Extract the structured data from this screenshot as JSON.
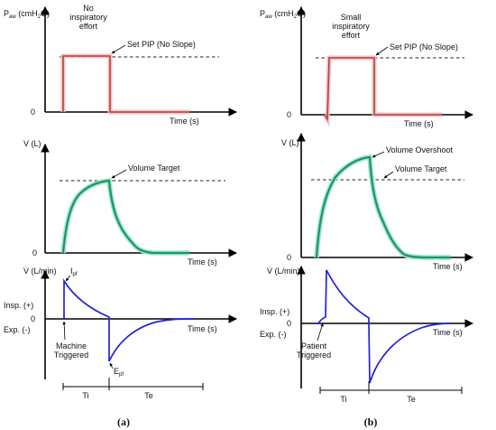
{
  "panel_a": {
    "pressure": {
      "ylabel": "Paw (cmH2O)",
      "ylabel_main": "P",
      "ylabel_sub": "aw",
      "ylabel_unit": " (cmH",
      "ylabel_unit_sub": "2",
      "ylabel_unit_end": "O)",
      "note_line1": "No",
      "note_line2": "inspiratory",
      "note_line3": "effort",
      "pip_label": "Set PIP (No Slope)",
      "zero": "0",
      "xlabel": "Time (s)"
    },
    "volume": {
      "ylabel": "V (L)",
      "target_label": "Volume Target",
      "zero": "0",
      "xlabel": "Time (s)"
    },
    "flow": {
      "ylabel": "V̇ (L/min)",
      "insp": "Insp. (+)",
      "exp": "Exp. (-)",
      "zero": "0",
      "xlabel": "Time (s)",
      "ipf_main": "I",
      "ipf_sub": "pf",
      "epf_main": "E",
      "epf_sub": "pf",
      "trigger_line1": "Machine",
      "trigger_line2": "Triggered",
      "ti": "Ti",
      "te": "Te"
    },
    "caption": "(a)"
  },
  "panel_b": {
    "pressure": {
      "ylabel": "Paw (cmH2O)",
      "ylabel_main": "P",
      "ylabel_sub": "aw",
      "ylabel_unit": " (cmH",
      "ylabel_unit_sub": "2",
      "ylabel_unit_end": "O)",
      "note_line1": "Small",
      "note_line2": "inspiratory",
      "note_line3": "effort",
      "pip_label": "Set PIP (No Slope)",
      "zero": "0",
      "xlabel": "Time (s)"
    },
    "volume": {
      "ylabel": "V (L)",
      "overshoot_label": "Volume Overshoot",
      "target_label": "Volume Target",
      "zero": "0",
      "xlabel": "Time (s)"
    },
    "flow": {
      "ylabel": "V̇ (L/min)",
      "insp": "Insp. (+)",
      "exp": "Exp. (-)",
      "zero": "0",
      "xlabel": "Time (s)",
      "trigger_line1": "Patient",
      "trigger_line2": "Triggered",
      "ti": "Ti",
      "te": "Te"
    },
    "caption": "(b)"
  },
  "colors": {
    "pressure": "#b5452b",
    "pressure_glow": "#f4b9cc",
    "volume": "#1e9460",
    "volume_glow": "#9fe6cf",
    "flow": "#2323d8",
    "axis": "#000000"
  }
}
